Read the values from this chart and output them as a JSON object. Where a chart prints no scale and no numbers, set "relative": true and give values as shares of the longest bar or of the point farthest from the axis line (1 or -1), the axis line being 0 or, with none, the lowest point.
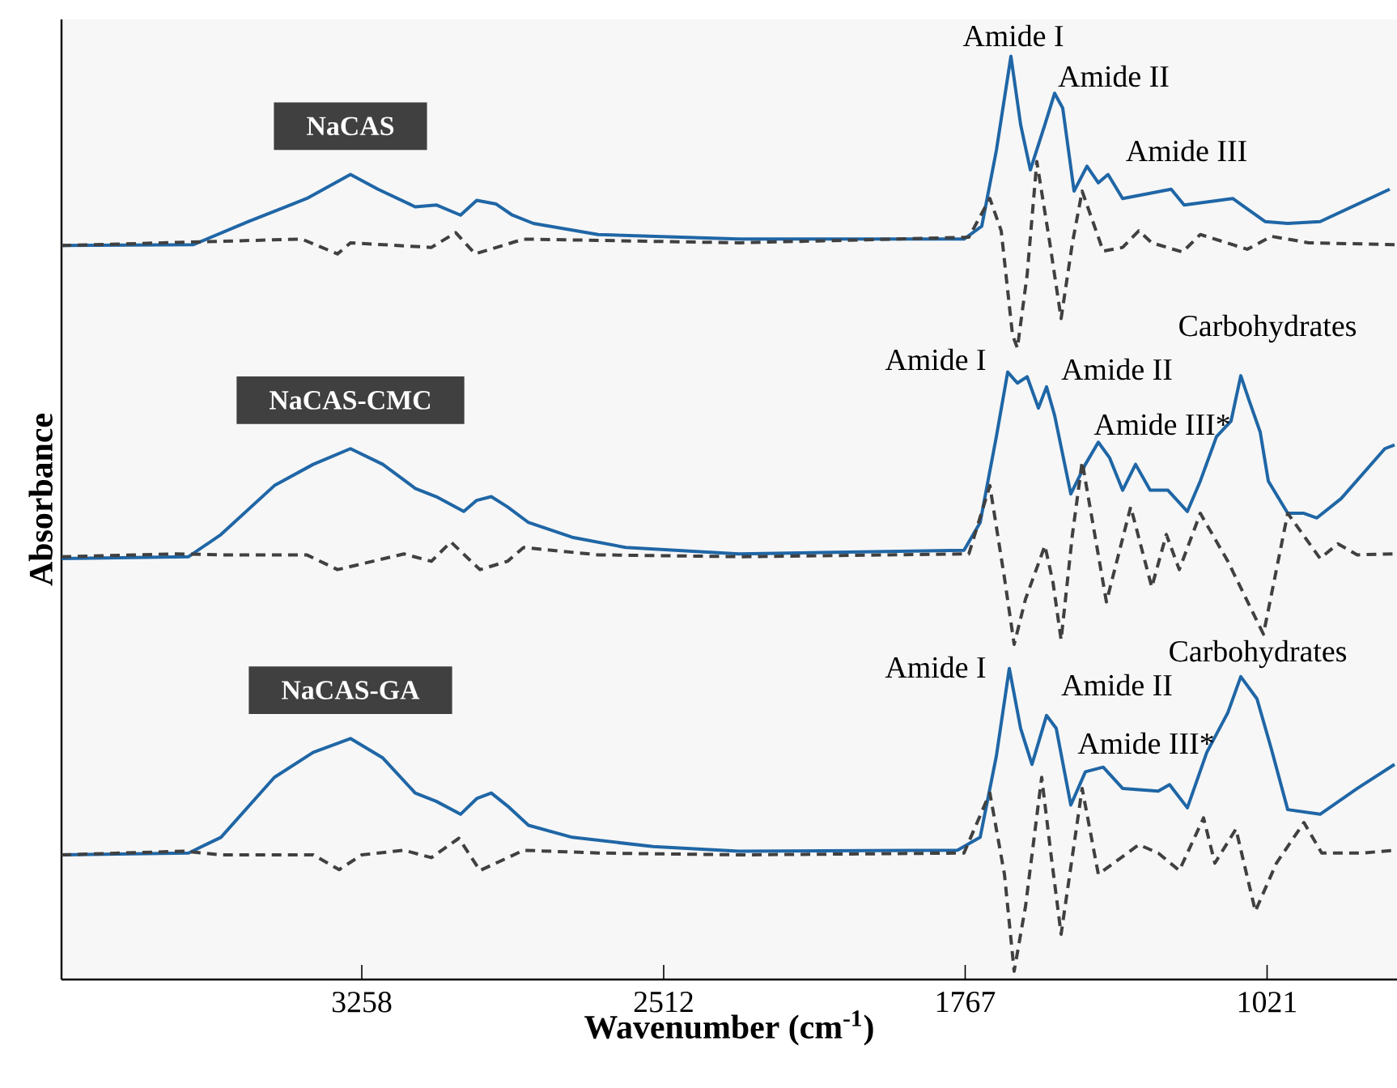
{
  "chart_data": {
    "type": "line",
    "relative": true,
    "xlabel": "Wavenumber (cm$^{-1}$)",
    "ylabel": "Absorbance",
    "xlim": [
      4000,
      700
    ],
    "xticks": [
      3258,
      2512,
      1767,
      1021
    ],
    "series": [
      {
        "name": "NaCAS",
        "color": "#1f66a6",
        "line_style": "solid",
        "x": [
          4000,
          3674,
          3538,
          3394,
          3286,
          3218,
          3126,
          3074,
          3014,
          2974,
          2926,
          2886,
          2834,
          2674,
          2326,
          1770,
          1726,
          1690,
          1654,
          1630,
          1606,
          1570,
          1546,
          1526,
          1498,
          1466,
          1438,
          1414,
          1378,
          1258,
          1226,
          1106,
          1026,
          970,
          890,
          718
        ],
        "values": [
          0.795,
          0.796,
          0.821,
          0.846,
          0.872,
          0.856,
          0.837,
          0.839,
          0.828,
          0.844,
          0.84,
          0.828,
          0.819,
          0.807,
          0.802,
          0.802,
          0.816,
          0.898,
          1.0,
          0.926,
          0.877,
          0.926,
          0.96,
          0.944,
          0.854,
          0.881,
          0.863,
          0.872,
          0.846,
          0.856,
          0.839,
          0.846,
          0.821,
          0.819,
          0.821,
          0.856
        ]
      },
      {
        "color": "#404040",
        "line_style": "dashed",
        "x": [
          4000,
          3406,
          3318,
          3286,
          3086,
          3026,
          2978,
          2858,
          2326,
          1758,
          1706,
          1678,
          1650,
          1638,
          1614,
          1590,
          1558,
          1530,
          1502,
          1478,
          1426,
          1378,
          1338,
          1306,
          1230,
          1186,
          1070,
          1010,
          918,
          706
        ],
        "values": [
          0.795,
          0.802,
          0.786,
          0.798,
          0.793,
          0.809,
          0.786,
          0.802,
          0.798,
          0.804,
          0.846,
          0.811,
          0.698,
          0.684,
          0.763,
          0.886,
          0.798,
          0.716,
          0.798,
          0.854,
          0.789,
          0.793,
          0.811,
          0.798,
          0.788,
          0.807,
          0.791,
          0.805,
          0.798,
          0.796
        ]
      },
      {
        "name": "NaCAS-CMC",
        "color": "#1f66a6",
        "line_style": "solid",
        "x": [
          4000,
          3686,
          3606,
          3474,
          3378,
          3286,
          3206,
          3126,
          3074,
          3006,
          2974,
          2938,
          2898,
          2846,
          2738,
          2606,
          2326,
          1770,
          1730,
          1690,
          1662,
          1638,
          1614,
          1586,
          1566,
          1546,
          1506,
          1470,
          1438,
          1410,
          1378,
          1346,
          1310,
          1266,
          1218,
          1186,
          1146,
          1110,
          1086,
          1066,
          1038,
          1018,
          970,
          930,
          898,
          838,
          730,
          706
        ],
        "values": [
          0.456,
          0.458,
          0.482,
          0.535,
          0.558,
          0.575,
          0.558,
          0.532,
          0.523,
          0.507,
          0.519,
          0.523,
          0.512,
          0.495,
          0.479,
          0.468,
          0.461,
          0.465,
          0.495,
          0.588,
          0.658,
          0.646,
          0.653,
          0.619,
          0.642,
          0.611,
          0.526,
          0.558,
          0.582,
          0.565,
          0.53,
          0.558,
          0.53,
          0.53,
          0.507,
          0.54,
          0.588,
          0.605,
          0.654,
          0.628,
          0.593,
          0.54,
          0.505,
          0.505,
          0.5,
          0.521,
          0.575,
          0.579
        ]
      },
      {
        "color": "#404040",
        "line_style": "dashed",
        "x": [
          4000,
          3714,
          3606,
          3394,
          3318,
          3154,
          3086,
          3038,
          2966,
          2898,
          2858,
          2674,
          2326,
          1758,
          1706,
          1670,
          1646,
          1618,
          1570,
          1550,
          1530,
          1502,
          1478,
          1418,
          1358,
          1306,
          1270,
          1238,
          1186,
          1118,
          1030,
          970,
          890,
          846,
          798,
          706
        ],
        "values": [
          0.458,
          0.461,
          0.46,
          0.46,
          0.444,
          0.461,
          0.453,
          0.474,
          0.444,
          0.453,
          0.468,
          0.46,
          0.458,
          0.461,
          0.535,
          0.435,
          0.363,
          0.412,
          0.47,
          0.43,
          0.368,
          0.482,
          0.561,
          0.409,
          0.512,
          0.425,
          0.482,
          0.444,
          0.505,
          0.453,
          0.374,
          0.505,
          0.456,
          0.472,
          0.46,
          0.461
        ]
      },
      {
        "name": "NaCAS-GA",
        "color": "#1f66a6",
        "line_style": "solid",
        "x": [
          4000,
          3686,
          3606,
          3474,
          3378,
          3286,
          3206,
          3126,
          3074,
          3014,
          2974,
          2938,
          2898,
          2846,
          2738,
          2538,
          2326,
          1786,
          1730,
          1690,
          1658,
          1630,
          1602,
          1566,
          1542,
          1506,
          1470,
          1426,
          1378,
          1290,
          1262,
          1218,
          1170,
          1118,
          1086,
          1046,
          1010,
          970,
          890,
          798,
          706
        ],
        "values": [
          0.135,
          0.137,
          0.154,
          0.219,
          0.246,
          0.261,
          0.24,
          0.202,
          0.193,
          0.179,
          0.196,
          0.202,
          0.188,
          0.167,
          0.154,
          0.144,
          0.139,
          0.14,
          0.154,
          0.242,
          0.337,
          0.272,
          0.233,
          0.286,
          0.272,
          0.189,
          0.225,
          0.23,
          0.207,
          0.204,
          0.211,
          0.186,
          0.246,
          0.289,
          0.328,
          0.304,
          0.249,
          0.184,
          0.179,
          0.207,
          0.233
        ]
      },
      {
        "color": "#404040",
        "line_style": "dashed",
        "x": [
          4000,
          3698,
          3606,
          3378,
          3314,
          3258,
          3154,
          3086,
          3018,
          2966,
          2858,
          2674,
          2326,
          1770,
          1706,
          1670,
          1646,
          1618,
          1578,
          1554,
          1530,
          1478,
          1438,
          1338,
          1290,
          1238,
          1178,
          1150,
          1098,
          1050,
          998,
          930,
          886,
          786,
          706
        ],
        "values": [
          0.135,
          0.139,
          0.135,
          0.135,
          0.119,
          0.135,
          0.14,
          0.132,
          0.153,
          0.118,
          0.14,
          0.137,
          0.135,
          0.137,
          0.202,
          0.114,
          0.009,
          0.079,
          0.219,
          0.132,
          0.049,
          0.207,
          0.114,
          0.146,
          0.137,
          0.118,
          0.175,
          0.126,
          0.163,
          0.074,
          0.126,
          0.17,
          0.137,
          0.137,
          0.14
        ]
      }
    ],
    "annotations": [
      "Amide I",
      "Amide II",
      "Amide III",
      "Amide I",
      "Amide II",
      "Amide III*",
      "Carbohydrates",
      "Amide I",
      "Amide II",
      "Amide III*",
      "Carbohydrates"
    ]
  }
}
